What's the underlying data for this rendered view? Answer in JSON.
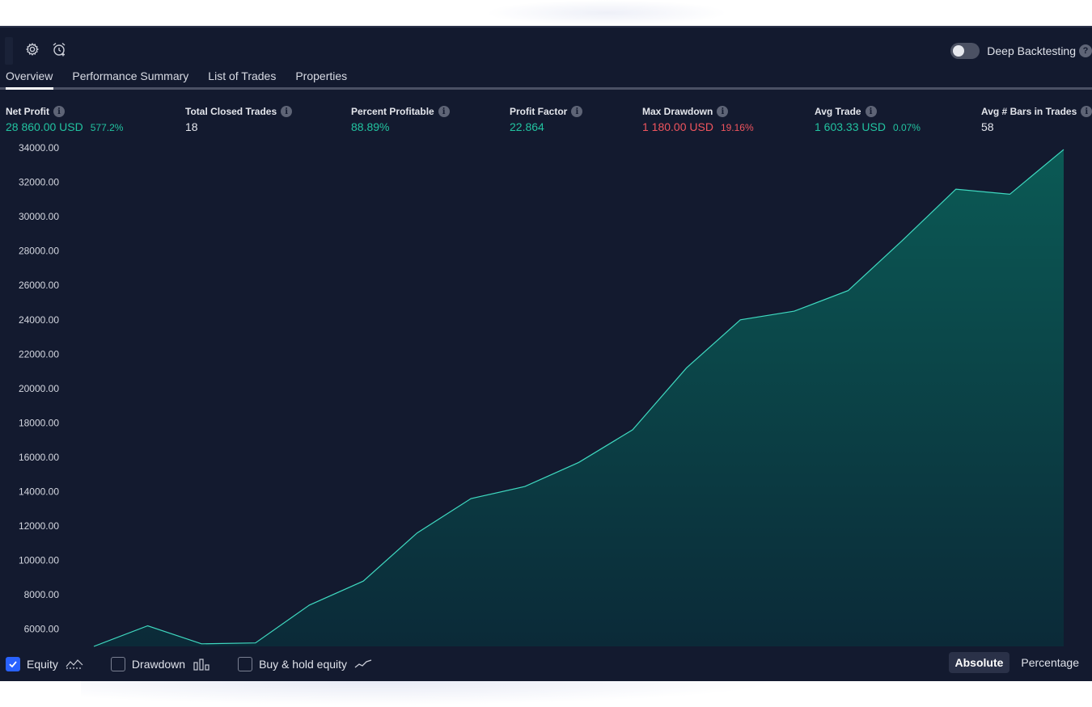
{
  "toolbar": {
    "deep_backtesting_label": "Deep Backtesting",
    "deep_backtesting_on": false,
    "help": "?"
  },
  "tabs": [
    {
      "label": "Overview",
      "active": true
    },
    {
      "label": "Performance Summary",
      "active": false
    },
    {
      "label": "List of Trades",
      "active": false
    },
    {
      "label": "Properties",
      "active": false
    }
  ],
  "metrics": {
    "info_glyph": "i",
    "net_profit": {
      "label": "Net Profit",
      "value": "28 860.00 USD",
      "sub": "577.2%"
    },
    "total_closed_trades": {
      "label": "Total Closed Trades",
      "value": "18"
    },
    "percent_profitable": {
      "label": "Percent Profitable",
      "value": "88.89%"
    },
    "profit_factor": {
      "label": "Profit Factor",
      "value": "22.864"
    },
    "max_drawdown": {
      "label": "Max Drawdown",
      "value": "1 180.00 USD",
      "sub": "19.16%"
    },
    "avg_trade": {
      "label": "Avg Trade",
      "value": "1 603.33 USD",
      "sub": "0.07%"
    },
    "avg_bars": {
      "label": "Avg # Bars in Trades",
      "value": "58"
    }
  },
  "colors": {
    "background": "#131a2f",
    "positive": "#22c3a0",
    "negative": "#f0555e",
    "line": "#3fd9c0",
    "fill_top": "#0b5a55",
    "fill_bottom": "#0b2a38",
    "checkbox_accent": "#2962ff"
  },
  "chart_data": {
    "type": "area",
    "x": [
      1,
      2,
      3,
      4,
      5,
      6,
      7,
      8,
      9,
      10,
      11,
      12,
      13,
      14,
      15,
      16,
      17,
      18,
      19
    ],
    "series": [
      {
        "values": [
          5000,
          6200,
          5150,
          5200,
          7400,
          8800,
          11600,
          13600,
          14300,
          15700,
          17600,
          21200,
          24000,
          24500,
          25700,
          28600,
          31600,
          31300,
          33900
        ]
      }
    ],
    "x_ticks": [
      1,
      3,
      5,
      7,
      9,
      11,
      13,
      15,
      17,
      19
    ],
    "y_ticks": [
      "6000.00",
      "8000.00",
      "10000.00",
      "12000.00",
      "14000.00",
      "16000.00",
      "18000.00",
      "20000.00",
      "22000.00",
      "24000.00",
      "26000.00",
      "28000.00",
      "30000.00",
      "32000.00",
      "34000.00"
    ],
    "ylim": [
      5000,
      34000
    ],
    "xlim": [
      1,
      19
    ],
    "grid": false
  },
  "legend": {
    "equity": {
      "label": "Equity",
      "checked": true
    },
    "drawdown": {
      "label": "Drawdown",
      "checked": false
    },
    "buy_hold": {
      "label": "Buy & hold equity",
      "checked": false
    }
  },
  "mode": {
    "absolute": "Absolute",
    "percentage": "Percentage",
    "active": "absolute"
  }
}
